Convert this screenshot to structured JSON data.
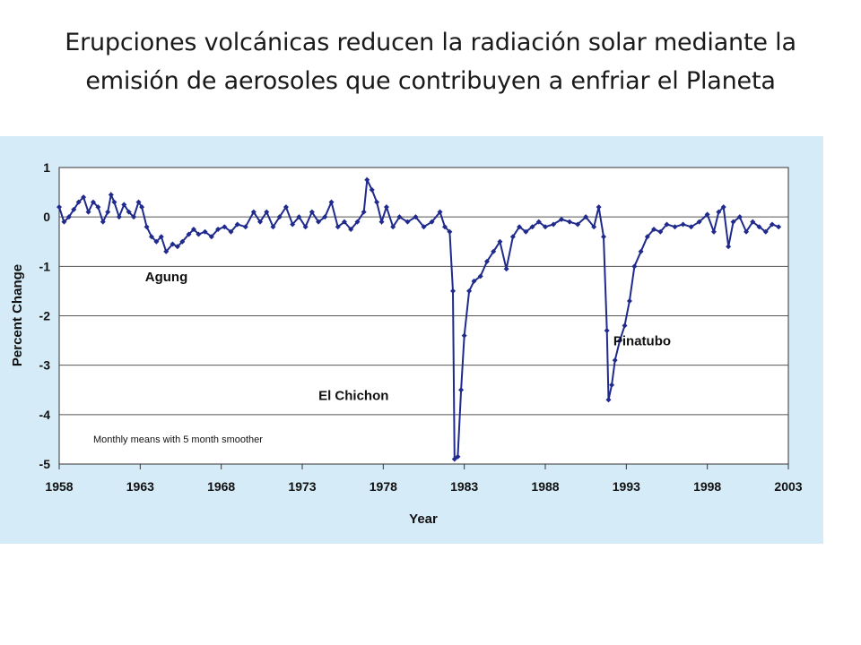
{
  "slide": {
    "title": "Erupciones volcánicas reducen la radiación solar mediante la emisión de aerosoles que contribuyen a enfriar el Planeta"
  },
  "colors": {
    "panel_bg": "#d5ecf8",
    "series": "#1f2a8c",
    "gridline": "#555555",
    "plot_bg": "#ffffff"
  },
  "chart_data": {
    "type": "scatter",
    "title": "",
    "xlabel": "Year",
    "ylabel": "Percent Change",
    "xlim": [
      1958,
      2003
    ],
    "ylim": [
      -5,
      1
    ],
    "xticks": [
      "1958",
      "1963",
      "1968",
      "1973",
      "1978",
      "1983",
      "1988",
      "1993",
      "1998",
      "2003"
    ],
    "yticks": [
      "1",
      "0",
      "-1",
      "-2",
      "-3",
      "-4",
      "-5"
    ],
    "grid": "horizontal",
    "note": "Monthly means with 5 month smoother",
    "annotations": [
      {
        "text": "Agung",
        "x": 1963.3,
        "y": -1.3
      },
      {
        "text": "El Chichon",
        "x": 1974.0,
        "y": -3.7
      },
      {
        "text": "Pinatubo",
        "x": 1992.2,
        "y": -2.6
      }
    ],
    "series": [
      {
        "style": "points-with-smoothed-line",
        "points": [
          [
            1958.0,
            0.2
          ],
          [
            1958.3,
            -0.1
          ],
          [
            1958.6,
            0.0
          ],
          [
            1958.9,
            0.15
          ],
          [
            1959.2,
            0.3
          ],
          [
            1959.5,
            0.4
          ],
          [
            1959.8,
            0.1
          ],
          [
            1960.1,
            0.3
          ],
          [
            1960.4,
            0.2
          ],
          [
            1960.7,
            -0.1
          ],
          [
            1961.0,
            0.1
          ],
          [
            1961.2,
            0.45
          ],
          [
            1961.4,
            0.3
          ],
          [
            1961.7,
            0.0
          ],
          [
            1962.0,
            0.25
          ],
          [
            1962.3,
            0.1
          ],
          [
            1962.6,
            0.0
          ],
          [
            1962.9,
            0.3
          ],
          [
            1963.1,
            0.2
          ],
          [
            1963.4,
            -0.2
          ],
          [
            1963.7,
            -0.4
          ],
          [
            1964.0,
            -0.5
          ],
          [
            1964.3,
            -0.4
          ],
          [
            1964.6,
            -0.7
          ],
          [
            1965.0,
            -0.55
          ],
          [
            1965.3,
            -0.6
          ],
          [
            1965.6,
            -0.5
          ],
          [
            1966.0,
            -0.35
          ],
          [
            1966.3,
            -0.25
          ],
          [
            1966.6,
            -0.35
          ],
          [
            1967.0,
            -0.3
          ],
          [
            1967.4,
            -0.4
          ],
          [
            1967.8,
            -0.25
          ],
          [
            1968.2,
            -0.2
          ],
          [
            1968.6,
            -0.3
          ],
          [
            1969.0,
            -0.15
          ],
          [
            1969.5,
            -0.2
          ],
          [
            1970.0,
            0.1
          ],
          [
            1970.4,
            -0.1
          ],
          [
            1970.8,
            0.1
          ],
          [
            1971.2,
            -0.2
          ],
          [
            1971.6,
            0.0
          ],
          [
            1972.0,
            0.2
          ],
          [
            1972.4,
            -0.15
          ],
          [
            1972.8,
            0.0
          ],
          [
            1973.2,
            -0.2
          ],
          [
            1973.6,
            0.1
          ],
          [
            1974.0,
            -0.1
          ],
          [
            1974.4,
            0.0
          ],
          [
            1974.8,
            0.3
          ],
          [
            1975.2,
            -0.2
          ],
          [
            1975.6,
            -0.1
          ],
          [
            1976.0,
            -0.25
          ],
          [
            1976.4,
            -0.1
          ],
          [
            1976.8,
            0.1
          ],
          [
            1977.0,
            0.75
          ],
          [
            1977.3,
            0.55
          ],
          [
            1977.6,
            0.3
          ],
          [
            1977.9,
            -0.1
          ],
          [
            1978.2,
            0.2
          ],
          [
            1978.6,
            -0.2
          ],
          [
            1979.0,
            0.0
          ],
          [
            1979.5,
            -0.1
          ],
          [
            1980.0,
            0.0
          ],
          [
            1980.5,
            -0.2
          ],
          [
            1981.0,
            -0.1
          ],
          [
            1981.5,
            0.1
          ],
          [
            1981.8,
            -0.2
          ],
          [
            1982.1,
            -0.3
          ],
          [
            1982.3,
            -1.5
          ],
          [
            1982.4,
            -4.9
          ],
          [
            1982.6,
            -4.85
          ],
          [
            1982.8,
            -3.5
          ],
          [
            1983.0,
            -2.4
          ],
          [
            1983.3,
            -1.5
          ],
          [
            1983.6,
            -1.3
          ],
          [
            1984.0,
            -1.2
          ],
          [
            1984.4,
            -0.9
          ],
          [
            1984.8,
            -0.7
          ],
          [
            1985.2,
            -0.5
          ],
          [
            1985.6,
            -1.05
          ],
          [
            1986.0,
            -0.4
          ],
          [
            1986.4,
            -0.2
          ],
          [
            1986.8,
            -0.3
          ],
          [
            1987.2,
            -0.2
          ],
          [
            1987.6,
            -0.1
          ],
          [
            1988.0,
            -0.2
          ],
          [
            1988.5,
            -0.15
          ],
          [
            1989.0,
            -0.05
          ],
          [
            1989.5,
            -0.1
          ],
          [
            1990.0,
            -0.15
          ],
          [
            1990.5,
            0.0
          ],
          [
            1991.0,
            -0.2
          ],
          [
            1991.3,
            0.2
          ],
          [
            1991.6,
            -0.4
          ],
          [
            1991.8,
            -2.3
          ],
          [
            1991.9,
            -3.7
          ],
          [
            1992.1,
            -3.4
          ],
          [
            1992.3,
            -2.9
          ],
          [
            1992.6,
            -2.5
          ],
          [
            1992.9,
            -2.2
          ],
          [
            1993.2,
            -1.7
          ],
          [
            1993.5,
            -1.0
          ],
          [
            1993.9,
            -0.7
          ],
          [
            1994.3,
            -0.4
          ],
          [
            1994.7,
            -0.25
          ],
          [
            1995.1,
            -0.3
          ],
          [
            1995.5,
            -0.15
          ],
          [
            1996.0,
            -0.2
          ],
          [
            1996.5,
            -0.15
          ],
          [
            1997.0,
            -0.2
          ],
          [
            1997.5,
            -0.1
          ],
          [
            1998.0,
            0.05
          ],
          [
            1998.4,
            -0.3
          ],
          [
            1998.7,
            0.1
          ],
          [
            1999.0,
            0.2
          ],
          [
            1999.3,
            -0.6
          ],
          [
            1999.6,
            -0.1
          ],
          [
            2000.0,
            0.0
          ],
          [
            2000.4,
            -0.3
          ],
          [
            2000.8,
            -0.1
          ],
          [
            2001.2,
            -0.2
          ],
          [
            2001.6,
            -0.3
          ],
          [
            2002.0,
            -0.15
          ],
          [
            2002.4,
            -0.2
          ]
        ]
      }
    ]
  }
}
